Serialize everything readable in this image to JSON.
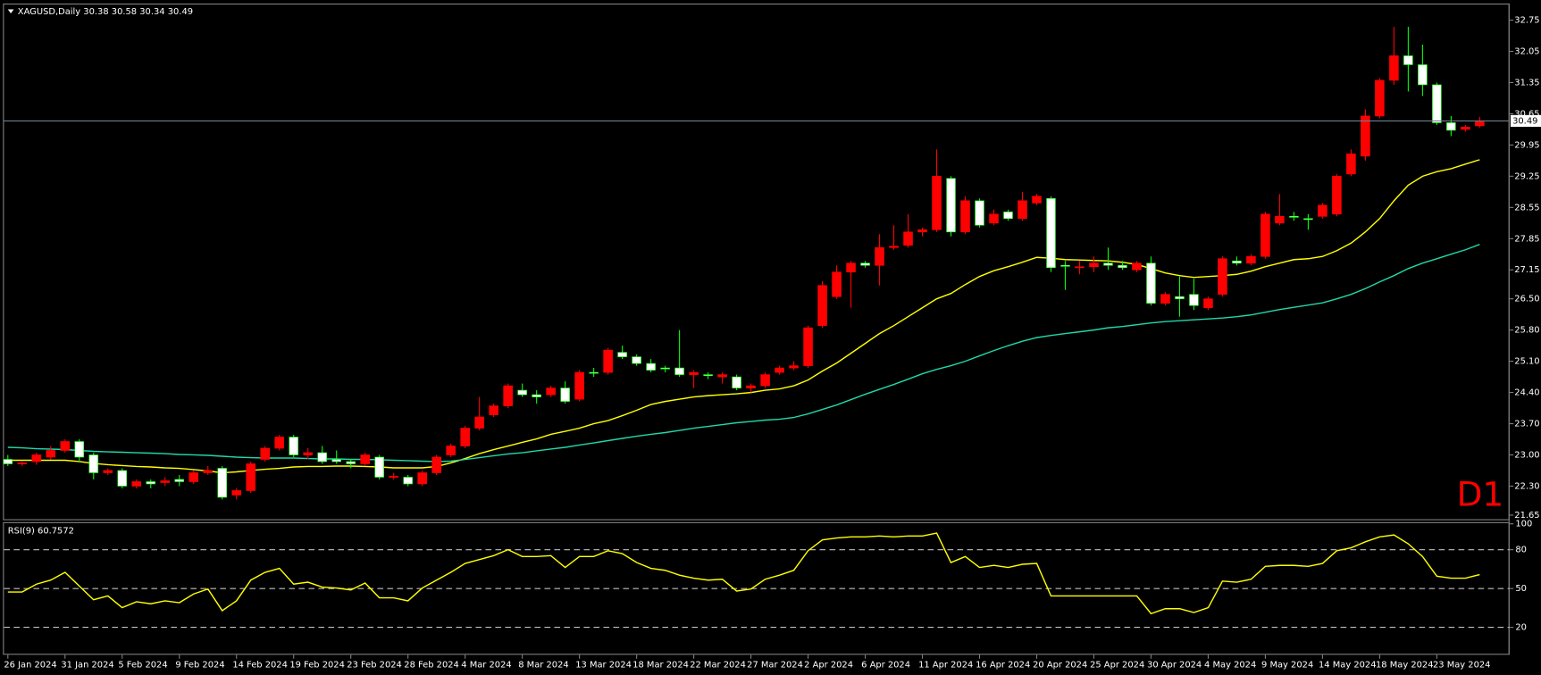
{
  "chart_data": [
    {
      "type": "candlestick",
      "title": "XAGUSD,Daily",
      "annotation": "D1",
      "up_color": "#ff0000",
      "down_color": "#ffffff",
      "wick_color": "#00ff00",
      "price_line_color": "#6f7f8f",
      "categories": [
        "26 Jan 2024",
        null,
        null,
        null,
        "31 Jan 2024",
        null,
        null,
        null,
        "5 Feb 2024",
        null,
        null,
        null,
        "9 Feb 2024",
        null,
        null,
        null,
        "14 Feb 2024",
        null,
        null,
        null,
        "19 Feb 2024",
        null,
        null,
        null,
        "23 Feb 2024",
        null,
        null,
        null,
        "28 Feb 2024",
        null,
        null,
        null,
        "4 Mar 2024",
        null,
        null,
        null,
        "8 Mar 2024",
        null,
        null,
        null,
        "13 Mar 2024",
        null,
        null,
        null,
        "18 Mar 2024",
        null,
        null,
        null,
        "22 Mar 2024",
        null,
        null,
        null,
        "27 Mar 2024",
        null,
        null,
        null,
        "2 Apr 2024",
        null,
        null,
        null,
        "6 Apr 2024",
        null,
        null,
        null,
        "11 Apr 2024",
        null,
        null,
        null,
        "16 Apr 2024",
        null,
        null,
        null,
        "20 Apr 2024",
        null,
        null,
        null,
        "25 Apr 2024",
        null,
        null,
        null,
        "30 Apr 2024",
        null,
        null,
        null,
        "4 May 2024",
        null,
        null,
        null,
        "9 May 2024",
        null,
        null,
        null,
        "14 May 2024",
        null,
        null,
        null,
        "18 May 2024",
        null,
        null,
        null,
        "23 May 2024",
        null,
        null,
        null
      ],
      "open": [
        22.9,
        22.8,
        22.85,
        22.95,
        23.1,
        23.3,
        23.0,
        22.6,
        22.65,
        22.3,
        22.4,
        22.38,
        22.45,
        22.4,
        22.6,
        22.7,
        22.1,
        22.2,
        22.9,
        23.15,
        23.4,
        23.0,
        23.05,
        22.9,
        22.85,
        22.8,
        22.95,
        22.5,
        22.5,
        22.35,
        22.6,
        23.0,
        23.2,
        23.6,
        23.9,
        24.1,
        24.45,
        24.35,
        24.35,
        24.5,
        24.25,
        24.85,
        24.85,
        25.3,
        25.2,
        25.05,
        24.95,
        24.95,
        24.8,
        24.8,
        24.75,
        24.75,
        24.5,
        24.55,
        24.85,
        24.95,
        25.0,
        25.9,
        26.55,
        27.1,
        27.3,
        27.25,
        27.65,
        27.7,
        28.0,
        28.05,
        29.2,
        28.0,
        28.7,
        28.2,
        28.45,
        28.3,
        28.65,
        28.75,
        27.25,
        27.2,
        27.22,
        27.3,
        27.25,
        27.15,
        27.3,
        26.4,
        26.55,
        26.6,
        26.3,
        26.6,
        27.35,
        27.3,
        27.45,
        28.2,
        28.35,
        28.3,
        28.35,
        28.4,
        29.3,
        29.7,
        30.6,
        31.4,
        31.95,
        31.75,
        31.3,
        30.45,
        30.3,
        30.38
      ],
      "high": [
        23.0,
        22.85,
        23.05,
        23.2,
        23.35,
        23.35,
        23.05,
        22.7,
        22.7,
        22.45,
        22.45,
        22.5,
        22.55,
        22.65,
        22.75,
        22.75,
        22.25,
        22.85,
        23.2,
        23.45,
        23.45,
        23.15,
        23.2,
        23.1,
        22.9,
        23.05,
        23.0,
        22.6,
        22.55,
        22.65,
        23.0,
        23.25,
        23.65,
        24.3,
        24.15,
        24.6,
        24.6,
        24.45,
        24.55,
        24.65,
        24.9,
        24.95,
        25.4,
        25.45,
        25.25,
        25.15,
        25.0,
        25.8,
        24.9,
        24.85,
        24.85,
        24.8,
        24.6,
        24.85,
        25.0,
        25.1,
        25.9,
        26.9,
        27.25,
        27.35,
        27.35,
        27.95,
        28.15,
        28.4,
        28.1,
        29.85,
        29.25,
        28.8,
        28.75,
        28.5,
        28.5,
        28.9,
        28.85,
        28.8,
        27.35,
        27.35,
        27.45,
        27.65,
        27.35,
        27.35,
        27.45,
        26.65,
        27.0,
        26.95,
        26.55,
        27.45,
        27.45,
        27.5,
        28.45,
        28.85,
        28.45,
        28.4,
        28.65,
        29.3,
        29.85,
        30.75,
        31.45,
        32.6,
        32.6,
        32.2,
        31.35,
        30.6,
        30.4,
        30.58
      ],
      "low": [
        22.75,
        22.75,
        22.78,
        22.9,
        23.05,
        22.85,
        22.45,
        22.55,
        22.25,
        22.25,
        22.25,
        22.3,
        22.3,
        22.35,
        22.55,
        22.0,
        22.0,
        22.15,
        22.85,
        23.1,
        22.95,
        22.9,
        22.8,
        22.8,
        22.7,
        22.75,
        22.45,
        22.45,
        22.3,
        22.3,
        22.55,
        22.95,
        23.15,
        23.55,
        23.85,
        24.05,
        24.3,
        24.15,
        24.3,
        24.15,
        24.2,
        24.75,
        24.8,
        25.15,
        25.0,
        24.85,
        24.85,
        24.75,
        24.5,
        24.7,
        24.6,
        24.45,
        24.4,
        24.5,
        24.8,
        24.9,
        24.95,
        25.85,
        26.5,
        26.3,
        27.2,
        26.8,
        27.6,
        27.65,
        27.9,
        28.0,
        27.9,
        27.95,
        28.1,
        28.15,
        28.25,
        28.25,
        28.6,
        27.1,
        26.7,
        27.05,
        27.1,
        27.15,
        27.15,
        27.1,
        26.35,
        26.35,
        26.1,
        26.25,
        26.25,
        26.55,
        27.25,
        27.25,
        27.4,
        28.15,
        28.25,
        28.05,
        28.3,
        28.35,
        29.25,
        29.6,
        30.55,
        31.3,
        31.15,
        31.05,
        30.4,
        30.15,
        30.25,
        30.34
      ],
      "close": [
        22.8,
        22.82,
        23.0,
        23.1,
        23.3,
        22.95,
        22.6,
        22.65,
        22.3,
        22.4,
        22.35,
        22.42,
        22.4,
        22.6,
        22.65,
        22.05,
        22.2,
        22.8,
        23.15,
        23.4,
        23.0,
        23.05,
        22.85,
        22.85,
        22.8,
        23.0,
        22.5,
        22.52,
        22.35,
        22.6,
        22.95,
        23.2,
        23.6,
        23.85,
        24.1,
        24.55,
        24.35,
        24.3,
        24.5,
        24.2,
        24.85,
        24.85,
        25.35,
        25.2,
        25.05,
        24.9,
        24.95,
        24.8,
        24.85,
        24.78,
        24.8,
        24.5,
        24.55,
        24.8,
        24.95,
        25.0,
        25.85,
        26.8,
        27.1,
        27.3,
        27.25,
        27.65,
        27.68,
        28.0,
        28.05,
        29.25,
        28.0,
        28.7,
        28.15,
        28.4,
        28.3,
        28.7,
        28.8,
        27.2,
        27.25,
        27.22,
        27.3,
        27.25,
        27.2,
        27.3,
        26.4,
        26.6,
        26.5,
        26.35,
        26.5,
        27.4,
        27.3,
        27.45,
        28.4,
        28.35,
        28.35,
        28.3,
        28.6,
        29.25,
        29.75,
        30.6,
        31.4,
        31.95,
        31.75,
        31.3,
        30.45,
        30.28,
        30.35,
        30.49
      ],
      "series": [
        {
          "color": "#ffff00",
          "values": [
            22.88,
            22.88,
            22.88,
            22.88,
            22.88,
            22.85,
            22.81,
            22.78,
            22.76,
            22.74,
            22.73,
            22.71,
            22.7,
            22.67,
            22.64,
            22.6,
            22.62,
            22.65,
            22.68,
            22.7,
            22.73,
            22.74,
            22.74,
            22.75,
            22.75,
            22.74,
            22.73,
            22.71,
            22.71,
            22.71,
            22.74,
            22.82,
            22.92,
            23.03,
            23.12,
            23.2,
            23.28,
            23.36,
            23.46,
            23.53,
            23.6,
            23.7,
            23.77,
            23.88,
            24.0,
            24.13,
            24.2,
            24.25,
            24.3,
            24.33,
            24.35,
            24.37,
            24.4,
            24.45,
            24.48,
            24.55,
            24.68,
            24.88,
            25.06,
            25.28,
            25.5,
            25.72,
            25.9,
            26.1,
            26.3,
            26.5,
            26.62,
            26.82,
            27.0,
            27.13,
            27.22,
            27.32,
            27.43,
            27.41,
            27.38,
            27.37,
            27.36,
            27.35,
            27.32,
            27.27,
            27.18,
            27.08,
            27.02,
            26.98,
            27.0,
            27.02,
            27.05,
            27.12,
            27.22,
            27.3,
            27.38,
            27.4,
            27.45,
            27.58,
            27.75,
            28.0,
            28.3,
            28.7,
            29.05,
            29.25,
            29.35,
            29.42,
            29.52,
            29.62
          ]
        },
        {
          "color": "#20d8a8",
          "values": [
            23.17,
            23.16,
            23.14,
            23.13,
            23.12,
            23.1,
            23.08,
            23.07,
            23.06,
            23.05,
            23.04,
            23.03,
            23.01,
            23.0,
            22.99,
            22.97,
            22.95,
            22.94,
            22.93,
            22.93,
            22.93,
            22.92,
            22.91,
            22.91,
            22.9,
            22.9,
            22.89,
            22.88,
            22.87,
            22.86,
            22.85,
            22.86,
            22.9,
            22.94,
            22.98,
            23.02,
            23.05,
            23.09,
            23.13,
            23.17,
            23.22,
            23.27,
            23.32,
            23.37,
            23.42,
            23.46,
            23.5,
            23.55,
            23.6,
            23.64,
            23.68,
            23.72,
            23.75,
            23.78,
            23.8,
            23.84,
            23.92,
            24.02,
            24.12,
            24.24,
            24.36,
            24.47,
            24.58,
            24.7,
            24.82,
            24.92,
            25.0,
            25.1,
            25.22,
            25.34,
            25.45,
            25.55,
            25.63,
            25.68,
            25.72,
            25.76,
            25.8,
            25.85,
            25.88,
            25.92,
            25.96,
            25.99,
            26.01,
            26.03,
            26.05,
            26.07,
            26.1,
            26.14,
            26.2,
            26.26,
            26.31,
            26.36,
            26.41,
            26.5,
            26.6,
            26.73,
            26.88,
            27.02,
            27.18,
            27.3,
            27.4,
            27.5,
            27.6,
            27.72
          ]
        }
      ],
      "ylim": [
        21.58,
        33.1
      ],
      "yticks": [
        {
          "value": 21.65,
          "label": "21.65"
        },
        {
          "value": 22.3,
          "label": "22.30"
        },
        {
          "value": 23,
          "label": "23.00"
        },
        {
          "value": 23.7,
          "label": "23.70"
        },
        {
          "value": 24.4,
          "label": "24.40"
        },
        {
          "value": 25.1,
          "label": "25.10"
        },
        {
          "value": 25.8,
          "label": "25.80"
        },
        {
          "value": 26.5,
          "label": "26.50"
        },
        27.15,
        27.85,
        28.55,
        29.25,
        29.95,
        30.65,
        31.35,
        32.05,
        32.75
      ]
    },
    {
      "type": "line",
      "title": "RSI(9)",
      "color": "#ffff00",
      "level_color": "#c0c0c0",
      "values": [
        47.3,
        47.3,
        53.4,
        56.5,
        62.5,
        51.9,
        41.3,
        44.3,
        35.2,
        39.8,
        38.2,
        40.5,
        39.0,
        45.8,
        49.6,
        32.9,
        40.5,
        56.5,
        62.5,
        65.6,
        53.4,
        54.9,
        51.1,
        50.4,
        48.9,
        54.2,
        42.8,
        42.8,
        40.5,
        50.4,
        56.5,
        62.5,
        69.4,
        72.4,
        75.4,
        80.0,
        74.7,
        74.7,
        75.4,
        66.3,
        74.7,
        74.7,
        79.2,
        77.0,
        70.1,
        65.6,
        64.1,
        60.3,
        58.0,
        56.5,
        57.2,
        48.1,
        49.6,
        57.2,
        60.3,
        64.1,
        79.2,
        87.6,
        89.1,
        89.9,
        89.9,
        90.6,
        89.9,
        90.6,
        90.6,
        92.9,
        70.1,
        74.7,
        66.3,
        67.9,
        66.3,
        68.7,
        69.4,
        44.3,
        44.3,
        44.3,
        44.3,
        44.3,
        44.3,
        44.3,
        30.6,
        34.4,
        34.4,
        31.4,
        35.2,
        55.7,
        54.9,
        57.2,
        67.1,
        67.9,
        67.9,
        67.1,
        69.4,
        79.2,
        81.5,
        86.1,
        89.9,
        91.4,
        84.6,
        74.7,
        59.5,
        58.0,
        58.0,
        60.7572
      ],
      "ylim": [
        0,
        100
      ],
      "yticks": [
        20,
        50,
        80,
        100
      ],
      "levels": [
        20,
        50,
        80
      ]
    }
  ]
}
